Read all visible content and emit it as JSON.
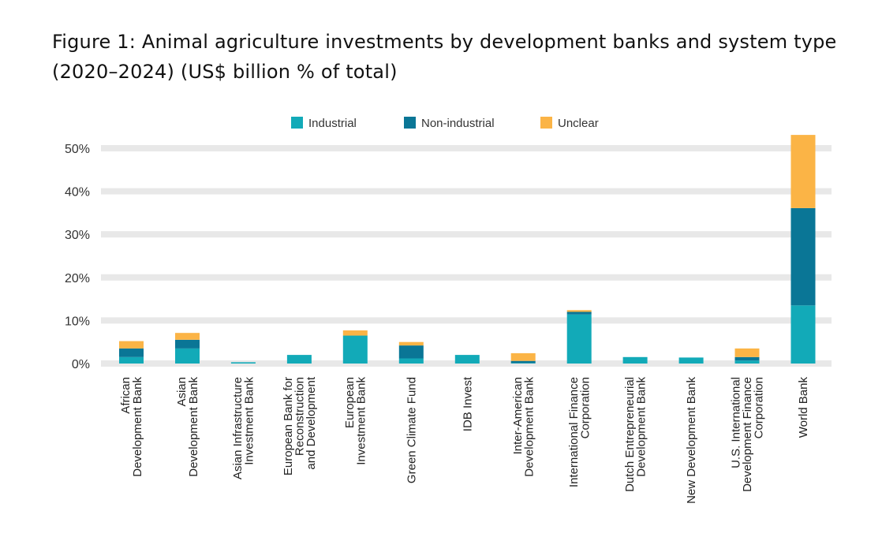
{
  "title": "Figure 1: Animal agriculture investments by development banks and system type (2020–2024) (US$ billion % of total)",
  "colors": {
    "Industrial": "#12aab8",
    "Non-industrial": "#0a7696",
    "Unclear": "#fbb446",
    "grid": "#e8e8e8"
  },
  "chart_data": {
    "type": "bar",
    "stacked": true,
    "title": "Figure 1: Animal agriculture investments by development banks and system type (2020–2024) (US$ billion % of total)",
    "xlabel": "",
    "ylabel": "",
    "ylim": [
      0,
      50
    ],
    "yticks": [
      0,
      10,
      20,
      30,
      40,
      50
    ],
    "ytick_labels": [
      "0%",
      "10%",
      "20%",
      "30%",
      "40%",
      "50%"
    ],
    "grid": true,
    "legend": "top-center",
    "categories": [
      [
        "African",
        "Development Bank"
      ],
      [
        "Asian",
        "Development Bank"
      ],
      [
        "Asian Infrastructure",
        "Investment Bank"
      ],
      [
        "European Bank for",
        "Reconstruction",
        "and Development"
      ],
      [
        "European",
        "Investment Bank"
      ],
      [
        "Green Climate Fund"
      ],
      [
        "IDB Invest"
      ],
      [
        "Inter-American",
        "Development Bank"
      ],
      [
        "International Finance",
        "Corporation"
      ],
      [
        "Dutch Entrepreneurial",
        "Development Bank"
      ],
      [
        "New Development Bank"
      ],
      [
        "U.S. International",
        "Development Finance",
        "Corporation"
      ],
      [
        "World Bank"
      ]
    ],
    "series": [
      {
        "name": "Industrial",
        "values": [
          1.5,
          3.5,
          0.3,
          2.0,
          6.5,
          1.2,
          2.0,
          0.1,
          11.4,
          1.5,
          1.4,
          0.7,
          13.5
        ]
      },
      {
        "name": "Non-industrial",
        "values": [
          2.0,
          2.0,
          0.0,
          0.0,
          0.0,
          3.0,
          0.0,
          0.5,
          0.6,
          0.0,
          0.0,
          0.8,
          22.6
        ]
      },
      {
        "name": "Unclear",
        "values": [
          1.7,
          1.6,
          0.0,
          0.0,
          1.2,
          0.8,
          0.0,
          1.8,
          0.4,
          0.0,
          0.0,
          2.0,
          17.0
        ]
      }
    ]
  }
}
